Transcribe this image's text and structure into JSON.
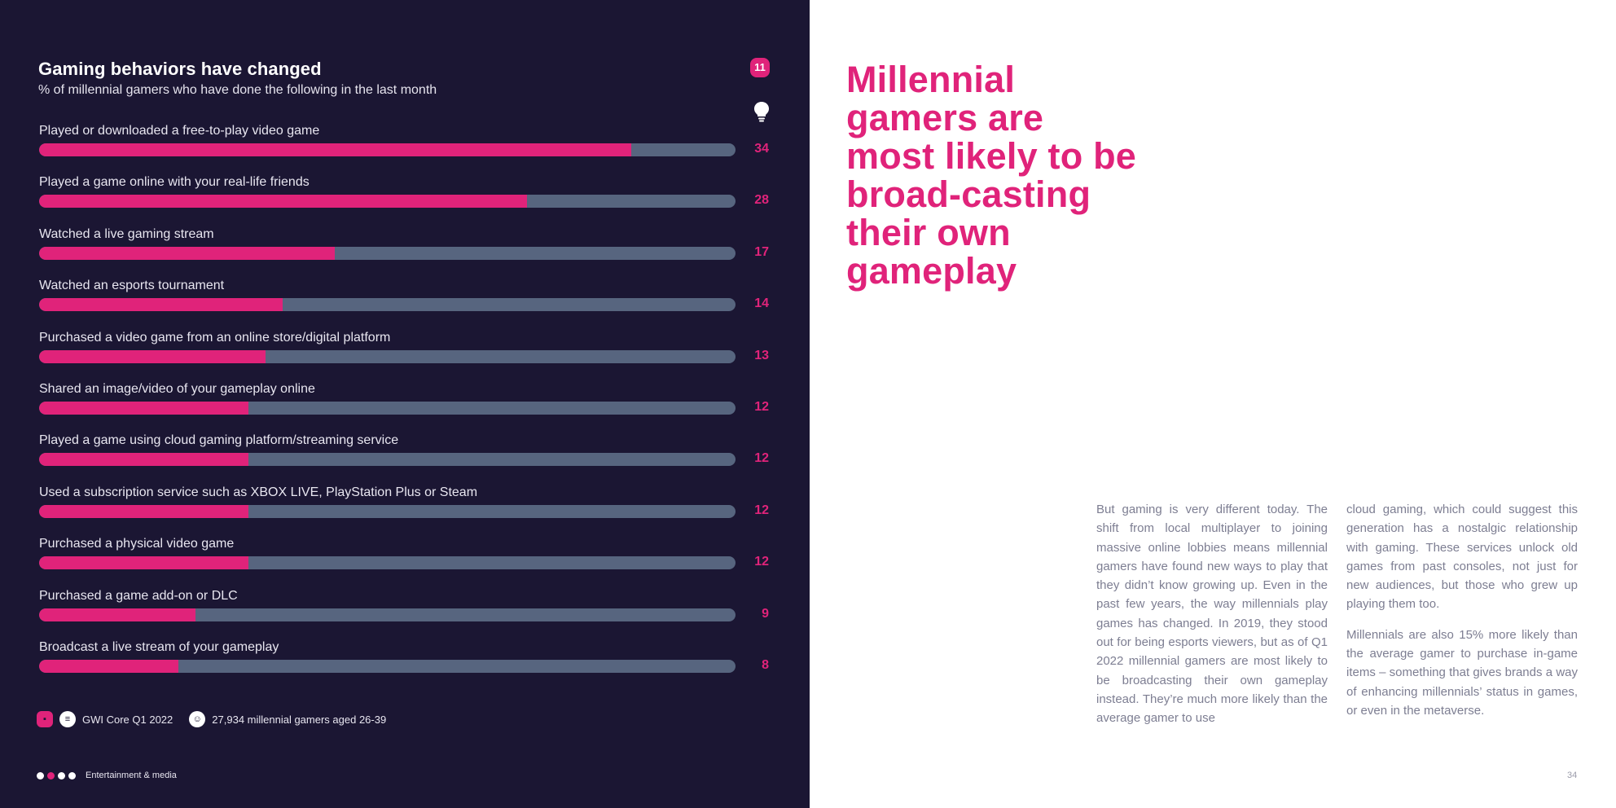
{
  "colors": {
    "background_dark": "#1b1633",
    "accent_pink": "#e0237a",
    "bar_track": "#57657f",
    "body_text": "#7d7e92"
  },
  "chart": {
    "title": "Gaming behaviors have changed",
    "subtitle": "% of millennial gamers who have done the following in the last month",
    "badge": "11",
    "badge_icon": "lightbulb-icon"
  },
  "chart_data": {
    "type": "bar",
    "orientation": "horizontal",
    "title": "Gaming behaviors have changed",
    "subtitle": "% of millennial gamers who have done the following in the last month",
    "xlim": [
      0,
      40
    ],
    "categories": [
      "Played or downloaded a free-to-play video game",
      "Played a game online with your real-life friends",
      "Watched a live gaming stream",
      "Watched an esports tournament",
      "Purchased a video game from an online store/digital platform",
      "Shared an image/video of your gameplay online",
      "Played a game using cloud gaming platform/streaming service",
      "Used a subscription service such as XBOX LIVE, PlayStation Plus or Steam",
      "Purchased a physical video game",
      "Purchased a game add-on or DLC",
      "Broadcast a live stream of your gameplay"
    ],
    "values": [
      34,
      28,
      17,
      14,
      13,
      12,
      12,
      12,
      12,
      9,
      8
    ],
    "value_labels": [
      "34",
      "28",
      "17",
      "14",
      "13",
      "12",
      "12",
      "12",
      "12",
      "9",
      "8"
    ]
  },
  "source": {
    "dataset": "GWI Core Q1 2022",
    "sample": "27,934 millennial gamers aged 26-39"
  },
  "footer": {
    "section": "Entertainment & media",
    "page_number": "34"
  },
  "article": {
    "headline": "Millennial gamers are most likely to be broad-casting their own gameplay",
    "col1": "But gaming is very different today. The shift from local multiplayer to joining massive online lobbies means millennial gamers have found new ways to play that they didn’t know growing up. Even in the past few years, the way millennials play games has changed. In 2019, they stood out for being esports viewers, but as of Q1 2022 millennial gamers are most likely to be broadcasting their own gameplay instead. They’re much more likely than the average gamer to use",
    "col2_p1": "cloud gaming, which could suggest this generation has a nostalgic relationship with gaming. These services unlock old games from past consoles, not just for new audiences, but those who grew up playing them too.",
    "col2_p2": "Millennials are also 15% more likely than the average gamer to purchase in-game items – something that gives brands a way of enhancing millennials’ status in games, or even in the metaverse."
  }
}
